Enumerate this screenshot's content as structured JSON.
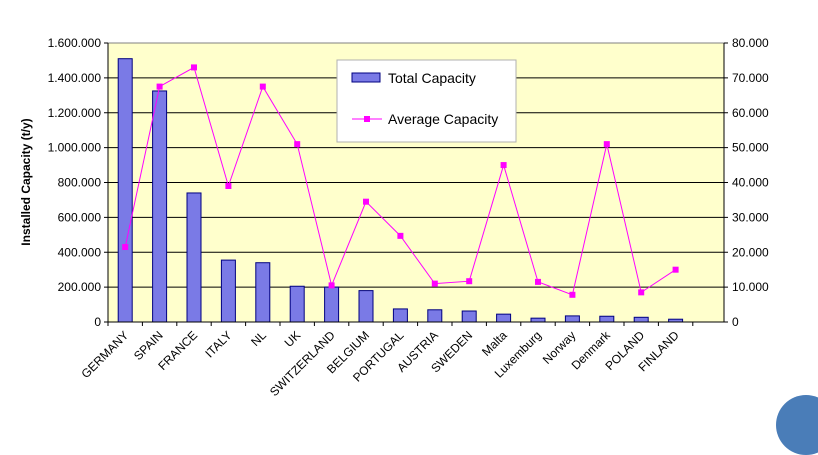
{
  "chart_data": {
    "type": "bar",
    "categories": [
      "GERMANY",
      "SPAIN",
      "FRANCE",
      "ITALY",
      "NL",
      "UK",
      "SWITZERLAND",
      "BELGIUM",
      "PORTUGAL",
      "AUSTRIA",
      "SWEDEN",
      "Malta",
      "Luxemburg",
      "Norway",
      "Denmark",
      "POLAND",
      "FINLAND"
    ],
    "series": [
      {
        "name": "Total Capacity",
        "axis": "left",
        "type": "bar",
        "color": "#7a7ae6",
        "values": [
          1510000,
          1325000,
          740000,
          355000,
          340000,
          205000,
          200000,
          180000,
          75000,
          70000,
          63000,
          45000,
          22000,
          35000,
          33000,
          27000,
          16000
        ]
      },
      {
        "name": "Average Capacity",
        "axis": "right",
        "type": "line",
        "color": "#ff00ff",
        "values": [
          21500,
          67500,
          73000,
          39000,
          67500,
          51000,
          10500,
          34500,
          24700,
          11000,
          11700,
          45000,
          11500,
          7800,
          51000,
          8500,
          15000
        ]
      }
    ],
    "ylabel": "Installed Capacity (t/y)",
    "ylim": [
      0,
      1600000
    ],
    "y2lim": [
      0,
      80000
    ],
    "yticks": [
      "0",
      "200.000",
      "400.000",
      "600.000",
      "800.000",
      "1.000.000",
      "1.200.000",
      "1.400.000",
      "1.600.000"
    ],
    "y2ticks": [
      "0",
      "10.000",
      "20.000",
      "30.000",
      "40.000",
      "50.000",
      "60.000",
      "70.000",
      "80.000"
    ],
    "grid": true,
    "legend": "top-center",
    "plot_background": "#ffffcc"
  }
}
